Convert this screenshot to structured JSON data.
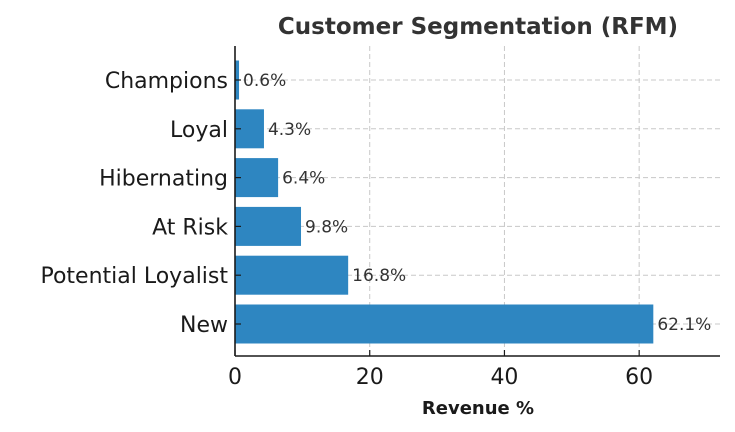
{
  "chart_data": {
    "type": "bar",
    "orientation": "horizontal",
    "title": "Customer Segmentation (RFM)",
    "xlabel": "Revenue %",
    "ylabel": "",
    "categories": [
      "Champions",
      "Loyal",
      "Hibernating",
      "At Risk",
      "Potential Loyalist",
      "New"
    ],
    "values": [
      0.6,
      4.3,
      6.4,
      9.8,
      16.8,
      62.1
    ],
    "data_labels": [
      "0.6%",
      "4.3%",
      "6.4%",
      "9.8%",
      "16.8%",
      "62.1%"
    ],
    "xlim": [
      0,
      72
    ],
    "xticks": [
      0,
      20,
      40,
      60
    ],
    "xtick_labels": [
      "0",
      "20",
      "40",
      "60"
    ],
    "grid": true,
    "bar_color": "#2e86c1"
  }
}
